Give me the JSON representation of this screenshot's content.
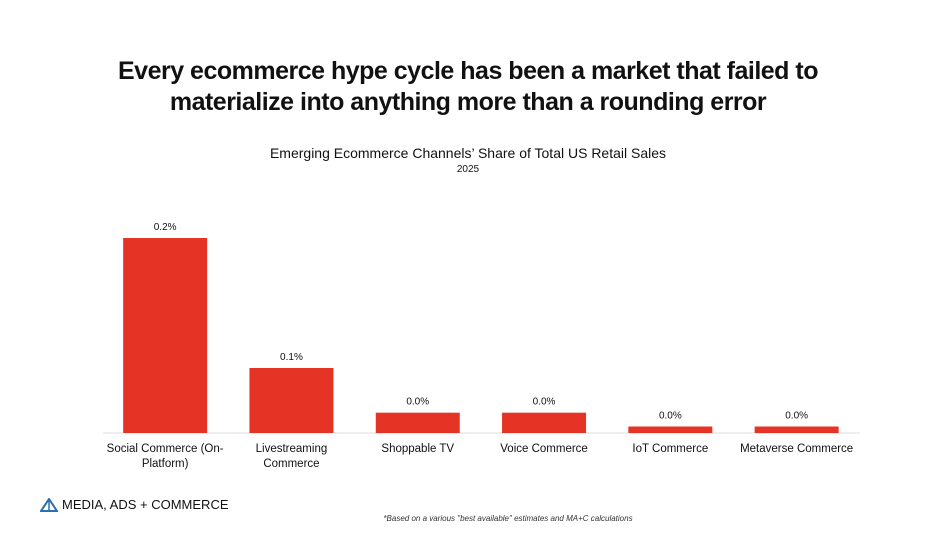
{
  "title": "Every ecommerce hype cycle has been a market that failed to materialize into anything more than a rounding error",
  "logo": "MEDIA, ADS + COMMERCE",
  "footnote": "*Based on a various \"best available\" estimates and MA+C calculations",
  "chart_data": {
    "type": "bar",
    "title": "Emerging Ecommerce Channels’ Share of Total US Retail Sales",
    "subtitle": "2025",
    "categories": [
      "Social Commerce (On-Platform)",
      "Livestreaming Commerce",
      "Shoppable TV",
      "Voice Commerce",
      "IoT Commerce",
      "Metaverse Commerce"
    ],
    "values": [
      0.24,
      0.08,
      0.025,
      0.025,
      0.008,
      0.008
    ],
    "value_labels": [
      "0.2%",
      "0.1%",
      "0.0%",
      "0.0%",
      "0.0%",
      "0.0%"
    ],
    "color": "#e53325"
  }
}
